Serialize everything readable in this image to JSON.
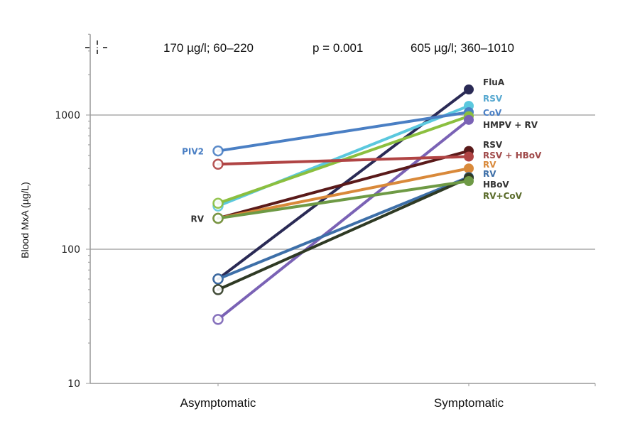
{
  "chart_data": {
    "type": "line",
    "title": "",
    "xlabel": "",
    "ylabel": "Blood MxA (µg/L)",
    "yscale": "log",
    "ylim": [
      10,
      4000
    ],
    "yticks": [
      10,
      100,
      1000
    ],
    "ytick_labels": [
      "10",
      "100",
      "1000"
    ],
    "grid": "horizontal at 100 and 1000",
    "categories": [
      "Asymptomatic",
      "Symptomatic"
    ],
    "header_stats": {
      "left": "170 µg/l; 60–220",
      "center": "p = 0.001",
      "right": "605 µg/l; 360–1010"
    },
    "series": [
      {
        "name": "FluA",
        "color": "#2a2a55",
        "values": [
          60,
          1550
        ],
        "left_label": "",
        "right_label": "FluA",
        "label_color": "#333333"
      },
      {
        "name": "RSV",
        "color": "#5bc8de",
        "values": [
          210,
          1170
        ],
        "left_label": "",
        "right_label": "RSV",
        "label_color": "#56a8d0"
      },
      {
        "name": "CoV",
        "color": "#4a7fc4",
        "values": [
          540,
          1050
        ],
        "left_label": "PIV2",
        "right_label": "CoV",
        "label_color": "#4a7fc4"
      },
      {
        "name": "HMPV + RV",
        "color": "#8bbf3f",
        "values": [
          220,
          980
        ],
        "left_label": "",
        "right_label": "HMPV + RV",
        "label_color": "#333333"
      },
      {
        "name": "HMPV + RV (purple)",
        "color": "#7a62b5",
        "values": [
          30,
          920
        ],
        "left_label": "",
        "right_label": "",
        "label_color": "#333333"
      },
      {
        "name": "RSV (maroon)",
        "color": "#5a1a1a",
        "values": [
          170,
          540
        ],
        "left_label": "RV",
        "right_label": "RSV",
        "label_color": "#333333"
      },
      {
        "name": "RSV + HBoV",
        "color": "#b04444",
        "values": [
          430,
          490
        ],
        "left_label": "",
        "right_label": "RSV + HBoV",
        "label_color": "#a04a4a"
      },
      {
        "name": "RV (orange)",
        "color": "#d9893a",
        "values": [
          170,
          400
        ],
        "left_label": "",
        "right_label": "RV",
        "label_color": "#d9893a"
      },
      {
        "name": "RV (blue)",
        "color": "#3d6fa8",
        "values": [
          60,
          345
        ],
        "left_label": "",
        "right_label": "RV",
        "label_color": "#3d6fa8"
      },
      {
        "name": "HBoV",
        "color": "#2f3a24",
        "values": [
          50,
          340
        ],
        "left_label": "",
        "right_label": "HBoV",
        "label_color": "#333333"
      },
      {
        "name": "RV+CoV",
        "color": "#6e9a45",
        "values": [
          170,
          322
        ],
        "left_label": "",
        "right_label": "RV+CoV",
        "label_color": "#5a6b2a"
      }
    ]
  }
}
